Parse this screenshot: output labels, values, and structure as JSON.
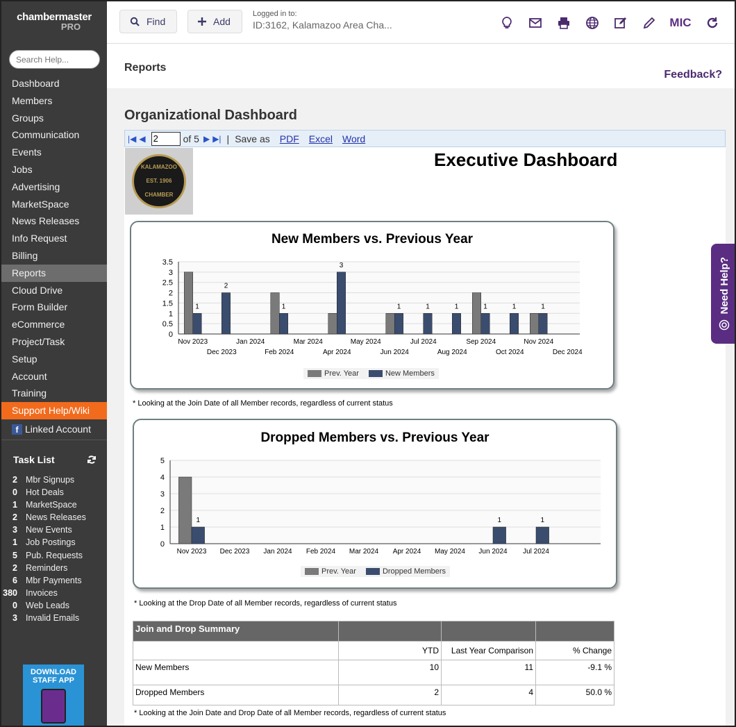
{
  "brand": {
    "name": "chambermaster",
    "edition": "PRO"
  },
  "search": {
    "placeholder": "Search Help..."
  },
  "nav": [
    "Dashboard",
    "Members",
    "Groups",
    "Communication",
    "Events",
    "Jobs",
    "Advertising",
    "MarketSpace",
    "News Releases",
    "Info Request",
    "Billing",
    "Reports",
    "Cloud Drive",
    "Form Builder",
    "eCommerce",
    "Project/Task",
    "Setup",
    "Account",
    "Training",
    "Support Help/Wiki"
  ],
  "nav_active": "Reports",
  "linked_account": "Linked Account",
  "tasklist": {
    "title": "Task List",
    "items": [
      {
        "n": "2",
        "l": "Mbr Signups"
      },
      {
        "n": "0",
        "l": "Hot Deals"
      },
      {
        "n": "1",
        "l": "MarketSpace"
      },
      {
        "n": "2",
        "l": "News Releases"
      },
      {
        "n": "3",
        "l": "New Events"
      },
      {
        "n": "1",
        "l": "Job Postings"
      },
      {
        "n": "5",
        "l": "Pub. Requests"
      },
      {
        "n": "2",
        "l": "Reminders"
      },
      {
        "n": "6",
        "l": "Mbr Payments"
      },
      {
        "n": "380",
        "l": "Invoices"
      },
      {
        "n": "0",
        "l": "Web Leads"
      },
      {
        "n": "3",
        "l": "Invalid Emails"
      }
    ]
  },
  "app_download": {
    "line1": "DOWNLOAD",
    "line2": "STAFF APP"
  },
  "topbar": {
    "find": "Find",
    "add": "Add",
    "logged_label": "Logged in to:",
    "logged_value": "ID:3162, Kalamazoo Area Cha...",
    "user": "MIC"
  },
  "page": {
    "title": "Reports",
    "feedback": "Feedback?",
    "org_title": "Organizational Dashboard"
  },
  "toolbar": {
    "page": "2",
    "of": "of 5",
    "saveas": "Save as",
    "pdf": "PDF",
    "excel": "Excel",
    "word": "Word"
  },
  "report": {
    "title": "Executive Dashboard",
    "logo_text": "KALAMAZOO\nEST. 1906\nCHAMBER"
  },
  "colors": {
    "prev": "#7a7a7a",
    "new": "#3b4d6e",
    "accent": "#5a2d82",
    "support": "#f26b1d"
  },
  "chart_data": [
    {
      "type": "bar",
      "title": "New Members vs. Previous Year",
      "categories": [
        "Nov 2023",
        "Dec 2023",
        "Jan 2024",
        "Feb 2024",
        "Mar 2024",
        "Apr 2024",
        "May 2024",
        "Jun 2024",
        "Jul 2024",
        "Aug 2024",
        "Sep 2024",
        "Oct 2024",
        "Nov 2024",
        "Dec 2024"
      ],
      "series": [
        {
          "name": "Prev. Year",
          "values": [
            3,
            0,
            0,
            2,
            0,
            1,
            0,
            1,
            0,
            0,
            2,
            0,
            1,
            0
          ]
        },
        {
          "name": "New Members",
          "values": [
            1,
            2,
            0,
            1,
            0,
            3,
            0,
            1,
            1,
            1,
            1,
            1,
            1,
            0
          ]
        }
      ],
      "yticks": [
        "0",
        "0.5",
        "1",
        "1.5",
        "2",
        "2.5",
        "3",
        "3.5"
      ],
      "ylim": [
        0,
        3.5
      ],
      "labels": [
        "1",
        "2",
        "",
        "1",
        "",
        "3",
        "",
        "1",
        "1",
        "1",
        "1",
        "1",
        "1",
        ""
      ],
      "note": "* Looking at the Join Date of all Member records, regardless of current status"
    },
    {
      "type": "bar",
      "title": "Dropped Members vs. Previous Year",
      "categories": [
        "Nov 2023",
        "Dec 2023",
        "Jan 2024",
        "Feb 2024",
        "Mar 2024",
        "Apr 2024",
        "May 2024",
        "Jun 2024",
        "Jul 2024"
      ],
      "series": [
        {
          "name": "Prev. Year",
          "values": [
            4,
            0,
            0,
            0,
            0,
            0,
            0,
            0,
            0
          ]
        },
        {
          "name": "Dropped Members",
          "values": [
            1,
            0,
            0,
            0,
            0,
            0,
            0,
            1,
            1
          ]
        }
      ],
      "yticks": [
        "0",
        "1",
        "2",
        "3",
        "4",
        "5"
      ],
      "ylim": [
        0,
        5
      ],
      "labels": [
        "1",
        "",
        "",
        "",
        "",
        "",
        "",
        "1",
        "1"
      ],
      "note": "* Looking at the Drop Date of all Member records, regardless of current status"
    }
  ],
  "summary": {
    "title": "Join and Drop Summary",
    "headers": [
      "YTD",
      "Last Year Comparison",
      "% Change"
    ],
    "rows": [
      {
        "label": "New Members",
        "ytd": "10",
        "last": "11",
        "pct": "-9.1 %"
      },
      {
        "label": "Dropped Members",
        "ytd": "2",
        "last": "4",
        "pct": "50.0 %"
      }
    ],
    "note": "* Looking at the  Join Date and Drop Date of all Member records, regardless of current status"
  },
  "needhelp": "Need Help?"
}
